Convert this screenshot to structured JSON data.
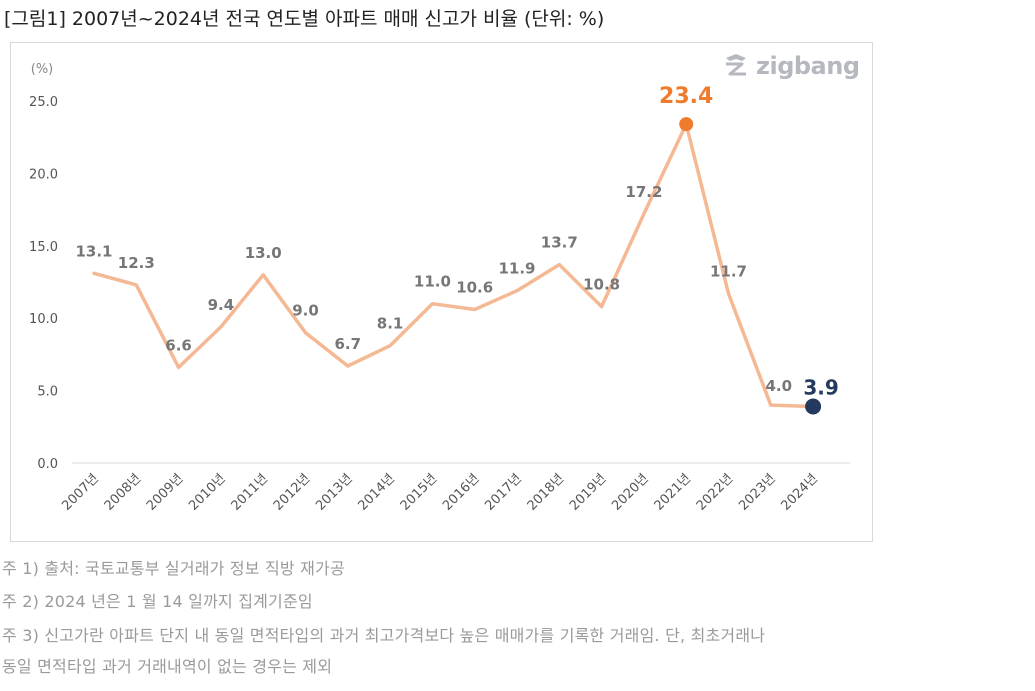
{
  "title": "[그림1] 2007년~2024년 전국 연도별 아파트 매매 신고가 비율 (단위: %)",
  "logo": {
    "text": "zigbang",
    "icon": "zigbang-logo-icon"
  },
  "chart_data": {
    "type": "line",
    "ylabel": "(%)",
    "ylim": [
      0,
      25
    ],
    "yticks": [
      "0.0",
      "5.0",
      "10.0",
      "15.0",
      "20.0",
      "25.0"
    ],
    "grid": false,
    "categories": [
      "2007년",
      "2008년",
      "2009년",
      "2010년",
      "2011년",
      "2012년",
      "2013년",
      "2014년",
      "2015년",
      "2016년",
      "2017년",
      "2018년",
      "2019년",
      "2020년",
      "2021년",
      "2022년",
      "2023년",
      "2024년"
    ],
    "values": [
      13.1,
      12.3,
      6.6,
      9.4,
      13.0,
      9.0,
      6.7,
      8.1,
      11.0,
      10.6,
      11.9,
      13.7,
      10.8,
      17.2,
      23.4,
      11.7,
      4.0,
      3.9
    ],
    "labels": [
      "13.1",
      "12.3",
      "6.6",
      "9.4",
      "13.0",
      "9.0",
      "6.7",
      "8.1",
      "11.0",
      "10.6",
      "11.9",
      "13.7",
      "10.8",
      "17.2",
      "23.4",
      "11.7",
      "4.0",
      "3.9"
    ],
    "colors": {
      "line": "#f4b994",
      "label": "#767676",
      "peak": "#ef7b2c",
      "last": "#23395d",
      "axis": "#d9d9d9",
      "tick": "#555555"
    },
    "highlight": {
      "max_index": 14,
      "last_index": 17
    }
  },
  "notes": [
    "주 1) 출처: 국토교통부 실거래가 정보 직방 재가공",
    "주 2) 2024 년은 1 월 14 일까지 집계기준임",
    "주 3) 신고가란 아파트 단지 내 동일 면적타입의 과거 최고가격보다 높은 매매가를 기록한 거래임. 단, 최초거래나",
    "동일 면적타입 과거 거래내역이 없는 경우는 제외"
  ]
}
